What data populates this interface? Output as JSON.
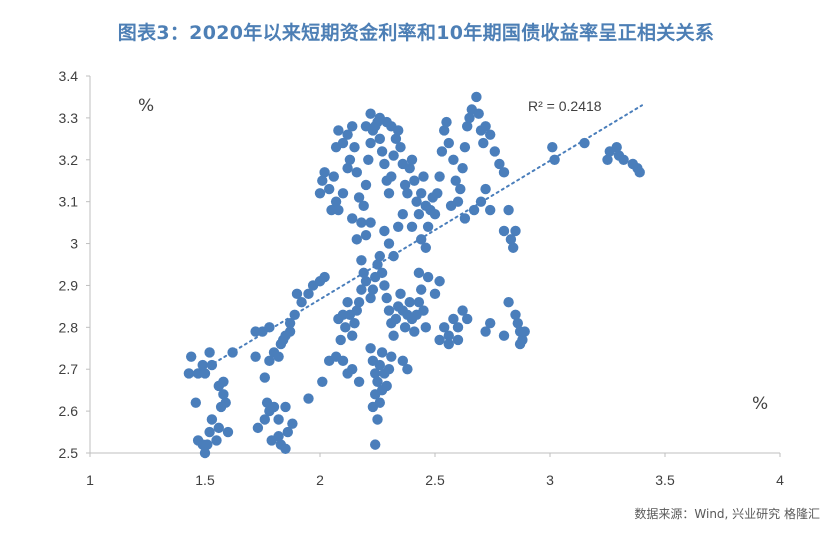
{
  "chart_data": {
    "type": "scatter",
    "title": "图表3：2020年以来短期资金利率和10年期国债收益率呈正相关关系",
    "x_unit": "%",
    "y_unit": "%",
    "xlim": [
      1,
      4
    ],
    "ylim": [
      2.5,
      3.4
    ],
    "x_ticks": [
      "1",
      "1.5",
      "2",
      "2.5",
      "3",
      "3.5",
      "4"
    ],
    "y_ticks": [
      "2.5",
      "2.6",
      "2.7",
      "2.8",
      "2.9",
      "3",
      "3.1",
      "3.2",
      "3.3",
      "3.4"
    ],
    "trendline": {
      "type": "linear-dotted",
      "x": [
        1.45,
        3.4
      ],
      "y": [
        2.685,
        3.33
      ],
      "label": "R² = 0.2418"
    },
    "point_color": "#4a7ebb",
    "points": [
      [
        1.43,
        2.69
      ],
      [
        1.44,
        2.73
      ],
      [
        1.46,
        2.62
      ],
      [
        1.47,
        2.69
      ],
      [
        1.49,
        2.71
      ],
      [
        1.5,
        2.69
      ],
      [
        1.52,
        2.74
      ],
      [
        1.53,
        2.71
      ],
      [
        1.47,
        2.53
      ],
      [
        1.49,
        2.52
      ],
      [
        1.5,
        2.5
      ],
      [
        1.51,
        2.52
      ],
      [
        1.52,
        2.55
      ],
      [
        1.53,
        2.58
      ],
      [
        1.55,
        2.53
      ],
      [
        1.56,
        2.56
      ],
      [
        1.57,
        2.61
      ],
      [
        1.58,
        2.64
      ],
      [
        1.59,
        2.62
      ],
      [
        1.6,
        2.55
      ],
      [
        1.56,
        2.66
      ],
      [
        1.58,
        2.67
      ],
      [
        1.62,
        2.74
      ],
      [
        1.72,
        2.73
      ],
      [
        1.73,
        2.56
      ],
      [
        1.76,
        2.58
      ],
      [
        1.77,
        2.62
      ],
      [
        1.78,
        2.6
      ],
      [
        1.8,
        2.61
      ],
      [
        1.82,
        2.58
      ],
      [
        1.83,
        2.52
      ],
      [
        1.85,
        2.51
      ],
      [
        1.86,
        2.55
      ],
      [
        1.88,
        2.57
      ],
      [
        1.85,
        2.61
      ],
      [
        1.82,
        2.54
      ],
      [
        1.79,
        2.53
      ],
      [
        1.76,
        2.68
      ],
      [
        1.78,
        2.72
      ],
      [
        1.8,
        2.74
      ],
      [
        1.83,
        2.76
      ],
      [
        1.85,
        2.78
      ],
      [
        1.87,
        2.81
      ],
      [
        1.89,
        2.83
      ],
      [
        1.92,
        2.86
      ],
      [
        1.95,
        2.88
      ],
      [
        1.9,
        2.88
      ],
      [
        1.87,
        2.79
      ],
      [
        1.84,
        2.77
      ],
      [
        1.82,
        2.73
      ],
      [
        1.75,
        2.79
      ],
      [
        1.78,
        2.8
      ],
      [
        1.72,
        2.79
      ],
      [
        1.97,
        2.9
      ],
      [
        2.0,
        2.91
      ],
      [
        2.02,
        2.92
      ],
      [
        1.95,
        2.63
      ],
      [
        2.01,
        2.67
      ],
      [
        2.04,
        2.72
      ],
      [
        2.07,
        2.73
      ],
      [
        2.1,
        2.72
      ],
      [
        2.12,
        2.69
      ],
      [
        2.14,
        2.7
      ],
      [
        2.17,
        2.67
      ],
      [
        2.0,
        3.12
      ],
      [
        2.01,
        3.15
      ],
      [
        2.02,
        3.17
      ],
      [
        2.04,
        3.13
      ],
      [
        2.06,
        3.16
      ],
      [
        2.07,
        3.1
      ],
      [
        2.05,
        3.08
      ],
      [
        2.08,
        3.08
      ],
      [
        2.1,
        3.12
      ],
      [
        2.12,
        3.18
      ],
      [
        2.07,
        3.23
      ],
      [
        2.08,
        3.27
      ],
      [
        2.1,
        3.24
      ],
      [
        2.12,
        3.26
      ],
      [
        2.13,
        3.2
      ],
      [
        2.15,
        3.23
      ],
      [
        2.16,
        3.17
      ],
      [
        2.17,
        3.11
      ],
      [
        2.18,
        3.05
      ],
      [
        2.19,
        3.09
      ],
      [
        2.2,
        3.14
      ],
      [
        2.21,
        3.2
      ],
      [
        2.22,
        3.24
      ],
      [
        2.23,
        3.27
      ],
      [
        2.24,
        3.28
      ],
      [
        2.25,
        3.29
      ],
      [
        2.26,
        3.25
      ],
      [
        2.27,
        3.22
      ],
      [
        2.28,
        3.19
      ],
      [
        2.29,
        3.15
      ],
      [
        2.3,
        3.12
      ],
      [
        2.31,
        3.16
      ],
      [
        2.32,
        3.21
      ],
      [
        2.33,
        3.25
      ],
      [
        2.34,
        3.27
      ],
      [
        2.35,
        3.23
      ],
      [
        2.36,
        3.19
      ],
      [
        2.37,
        3.14
      ],
      [
        2.38,
        3.12
      ],
      [
        2.39,
        3.18
      ],
      [
        2.4,
        3.2
      ],
      [
        2.41,
        3.15
      ],
      [
        2.42,
        3.1
      ],
      [
        2.43,
        3.07
      ],
      [
        2.44,
        3.12
      ],
      [
        2.45,
        3.16
      ],
      [
        2.46,
        3.09
      ],
      [
        2.47,
        3.04
      ],
      [
        2.48,
        3.08
      ],
      [
        2.49,
        3.11
      ],
      [
        2.5,
        3.07
      ],
      [
        2.51,
        3.12
      ],
      [
        2.52,
        3.16
      ],
      [
        2.53,
        3.22
      ],
      [
        2.54,
        3.27
      ],
      [
        2.55,
        3.29
      ],
      [
        2.56,
        3.24
      ],
      [
        2.58,
        3.2
      ],
      [
        2.59,
        3.15
      ],
      [
        2.6,
        3.1
      ],
      [
        2.61,
        3.13
      ],
      [
        2.62,
        3.18
      ],
      [
        2.63,
        3.23
      ],
      [
        2.64,
        3.28
      ],
      [
        2.65,
        3.3
      ],
      [
        2.66,
        3.32
      ],
      [
        2.68,
        3.35
      ],
      [
        2.69,
        3.31
      ],
      [
        2.7,
        3.27
      ],
      [
        2.71,
        3.24
      ],
      [
        2.72,
        3.28
      ],
      [
        2.74,
        3.26
      ],
      [
        2.76,
        3.22
      ],
      [
        2.78,
        3.19
      ],
      [
        2.8,
        3.17
      ],
      [
        2.82,
        3.08
      ],
      [
        2.8,
        3.03
      ],
      [
        2.83,
        3.01
      ],
      [
        2.84,
        2.99
      ],
      [
        2.85,
        3.03
      ],
      [
        2.72,
        3.13
      ],
      [
        2.74,
        3.08
      ],
      [
        2.7,
        3.1
      ],
      [
        2.67,
        3.08
      ],
      [
        2.63,
        3.06
      ],
      [
        2.57,
        3.09
      ],
      [
        2.14,
        3.06
      ],
      [
        2.16,
        3.01
      ],
      [
        2.18,
        2.96
      ],
      [
        2.19,
        2.93
      ],
      [
        2.2,
        2.91
      ],
      [
        2.18,
        2.89
      ],
      [
        2.17,
        2.86
      ],
      [
        2.16,
        2.84
      ],
      [
        2.15,
        2.81
      ],
      [
        2.14,
        2.78
      ],
      [
        2.13,
        2.83
      ],
      [
        2.12,
        2.86
      ],
      [
        2.11,
        2.8
      ],
      [
        2.1,
        2.83
      ],
      [
        2.09,
        2.77
      ],
      [
        2.08,
        2.82
      ],
      [
        2.22,
        2.87
      ],
      [
        2.23,
        2.89
      ],
      [
        2.24,
        2.92
      ],
      [
        2.25,
        2.95
      ],
      [
        2.26,
        2.97
      ],
      [
        2.27,
        2.93
      ],
      [
        2.28,
        2.9
      ],
      [
        2.29,
        2.87
      ],
      [
        2.3,
        2.84
      ],
      [
        2.31,
        2.81
      ],
      [
        2.32,
        2.78
      ],
      [
        2.33,
        2.82
      ],
      [
        2.34,
        2.85
      ],
      [
        2.35,
        2.88
      ],
      [
        2.36,
        2.84
      ],
      [
        2.37,
        2.8
      ],
      [
        2.38,
        2.83
      ],
      [
        2.39,
        2.86
      ],
      [
        2.4,
        2.82
      ],
      [
        2.41,
        2.79
      ],
      [
        2.42,
        2.83
      ],
      [
        2.43,
        2.86
      ],
      [
        2.44,
        2.89
      ],
      [
        2.45,
        2.84
      ],
      [
        2.46,
        2.8
      ],
      [
        2.22,
        2.75
      ],
      [
        2.23,
        2.72
      ],
      [
        2.24,
        2.69
      ],
      [
        2.25,
        2.67
      ],
      [
        2.26,
        2.71
      ],
      [
        2.27,
        2.74
      ],
      [
        2.28,
        2.69
      ],
      [
        2.29,
        2.66
      ],
      [
        2.3,
        2.7
      ],
      [
        2.31,
        2.73
      ],
      [
        2.24,
        2.64
      ],
      [
        2.23,
        2.61
      ],
      [
        2.25,
        2.58
      ],
      [
        2.24,
        2.52
      ],
      [
        2.26,
        2.62
      ],
      [
        2.27,
        2.65
      ],
      [
        2.36,
        2.72
      ],
      [
        2.38,
        2.7
      ],
      [
        2.52,
        2.77
      ],
      [
        2.54,
        2.8
      ],
      [
        2.56,
        2.78
      ],
      [
        2.58,
        2.82
      ],
      [
        2.6,
        2.8
      ],
      [
        2.62,
        2.84
      ],
      [
        2.64,
        2.82
      ],
      [
        2.56,
        2.76
      ],
      [
        2.6,
        2.77
      ],
      [
        2.72,
        2.79
      ],
      [
        2.74,
        2.81
      ],
      [
        2.8,
        2.78
      ],
      [
        2.82,
        2.86
      ],
      [
        2.85,
        2.83
      ],
      [
        2.86,
        2.81
      ],
      [
        2.87,
        2.79
      ],
      [
        2.88,
        2.77
      ],
      [
        2.89,
        2.79
      ],
      [
        2.87,
        2.76
      ],
      [
        2.43,
        2.93
      ],
      [
        2.47,
        2.92
      ],
      [
        2.5,
        2.88
      ],
      [
        2.52,
        2.91
      ],
      [
        2.28,
        3.03
      ],
      [
        2.3,
        3.0
      ],
      [
        2.32,
        2.97
      ],
      [
        2.34,
        3.04
      ],
      [
        2.36,
        3.07
      ],
      [
        2.4,
        3.04
      ],
      [
        2.44,
        3.01
      ],
      [
        2.46,
        2.99
      ],
      [
        2.2,
        3.02
      ],
      [
        2.22,
        3.05
      ],
      [
        2.2,
        3.28
      ],
      [
        2.22,
        3.31
      ],
      [
        2.26,
        3.3
      ],
      [
        2.29,
        3.29
      ],
      [
        2.31,
        3.28
      ],
      [
        2.14,
        3.28
      ],
      [
        3.01,
        3.23
      ],
      [
        3.02,
        3.2
      ],
      [
        3.15,
        3.24
      ],
      [
        3.25,
        3.2
      ],
      [
        3.26,
        3.22
      ],
      [
        3.29,
        3.23
      ],
      [
        3.3,
        3.21
      ],
      [
        3.32,
        3.2
      ],
      [
        3.36,
        3.19
      ],
      [
        3.38,
        3.18
      ],
      [
        3.39,
        3.17
      ]
    ]
  },
  "source": "数据来源：Wind, 兴业研究 格隆汇"
}
